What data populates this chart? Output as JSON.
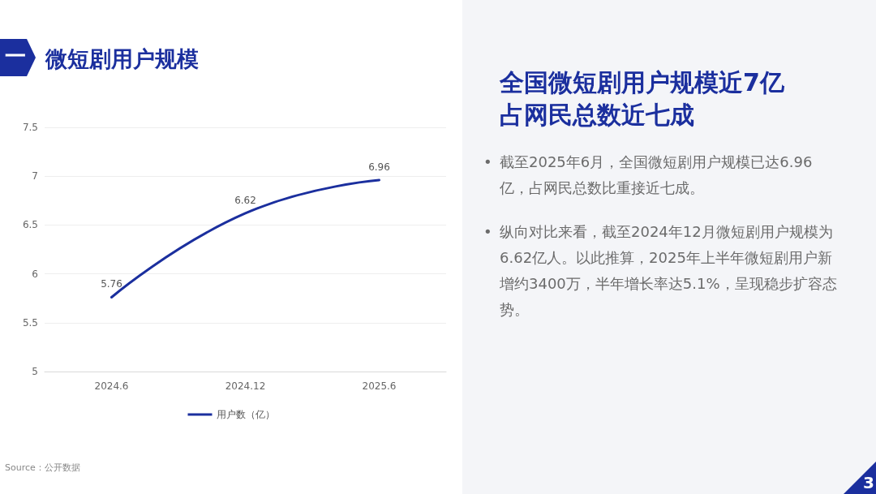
{
  "chart_data": {
    "type": "line",
    "title": "微短剧用户规模",
    "categories": [
      "2024.6",
      "2024.12",
      "2025.6"
    ],
    "series": [
      {
        "name": "用户数（亿）",
        "color": "#1b2f9e",
        "values": [
          5.76,
          6.62,
          6.96
        ]
      }
    ],
    "ylim": [
      5,
      7.5
    ],
    "yticks": [
      5,
      5.5,
      6,
      6.5,
      7,
      7.5
    ],
    "grid": "y",
    "legend": "bottom",
    "marker": "none",
    "line_style": "solid",
    "data_labels": true,
    "annotations": [
      "一",
      "全国微短剧用户规模近7亿",
      "占网民总数近七成",
      "•",
      "截至2025年6月，全国微短剧用户规模已达6.96亿，占网民总数比重接近七成。",
      "•",
      "纵向对比来看，截至2024年12月微短剧用户规模为6.62亿人。以此推算，2025年上半年微短剧用户新增约3400万，半年增长率达5.1%，呈现稳步扩容态势。",
      "Source：公开数据",
      "3"
    ]
  }
}
